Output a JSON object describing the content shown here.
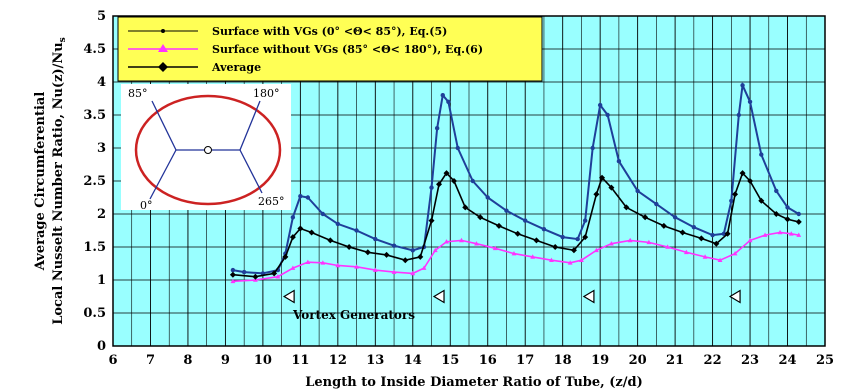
{
  "colors": {
    "plot_background": "#99ffff",
    "grid": "#000000",
    "legend_background": "#ffff55",
    "series_vg": "#1f3f99",
    "series_novg": "#ff33ff",
    "series_avg": "#000000",
    "inset_ellipse": "#cc2222",
    "inset_lines": "#223399"
  },
  "chart_data": {
    "type": "line",
    "title": "",
    "xlabel": "Length to Inside Diameter Ratio of Tube, (z/d)",
    "ylabel_line1": "Average Circumferential",
    "ylabel_line2": "Local Nusselt Number Ratio, Nu(z)/Nu",
    "ylabel_sub": "s",
    "xlim": [
      6,
      25
    ],
    "ylim": [
      0,
      5
    ],
    "x_ticks": [
      "6",
      "7",
      "8",
      "9",
      "10",
      "11",
      "12",
      "13",
      "14",
      "15",
      "16",
      "17",
      "18",
      "19",
      "20",
      "21",
      "22",
      "23",
      "24",
      "25"
    ],
    "y_ticks": [
      "0",
      "0.5",
      "1",
      "1.5",
      "2",
      "2.5",
      "3",
      "3.5",
      "4",
      "4.5",
      "5"
    ],
    "grid": true,
    "legend_position": "top-left",
    "series": [
      {
        "name": "Surface with VGs (0° <Θ< 85°), Eq.(5)",
        "marker": "small-dot",
        "points": [
          [
            9.2,
            1.15
          ],
          [
            9.5,
            1.12
          ],
          [
            10.0,
            1.1
          ],
          [
            10.4,
            1.15
          ],
          [
            10.6,
            1.4
          ],
          [
            10.8,
            1.95
          ],
          [
            11.0,
            2.27
          ],
          [
            11.2,
            2.25
          ],
          [
            11.6,
            2.0
          ],
          [
            12.0,
            1.85
          ],
          [
            12.5,
            1.75
          ],
          [
            13.0,
            1.62
          ],
          [
            13.5,
            1.52
          ],
          [
            14.0,
            1.45
          ],
          [
            14.3,
            1.5
          ],
          [
            14.5,
            2.4
          ],
          [
            14.65,
            3.3
          ],
          [
            14.8,
            3.8
          ],
          [
            14.95,
            3.7
          ],
          [
            15.2,
            3.0
          ],
          [
            15.6,
            2.5
          ],
          [
            16.0,
            2.25
          ],
          [
            16.5,
            2.05
          ],
          [
            17.0,
            1.9
          ],
          [
            17.5,
            1.77
          ],
          [
            18.0,
            1.65
          ],
          [
            18.4,
            1.62
          ],
          [
            18.6,
            1.9
          ],
          [
            18.8,
            3.0
          ],
          [
            19.0,
            3.65
          ],
          [
            19.2,
            3.5
          ],
          [
            19.5,
            2.8
          ],
          [
            20.0,
            2.35
          ],
          [
            20.5,
            2.15
          ],
          [
            21.0,
            1.95
          ],
          [
            21.5,
            1.8
          ],
          [
            22.0,
            1.68
          ],
          [
            22.3,
            1.7
          ],
          [
            22.5,
            2.2
          ],
          [
            22.7,
            3.5
          ],
          [
            22.8,
            3.95
          ],
          [
            23.0,
            3.7
          ],
          [
            23.3,
            2.9
          ],
          [
            23.7,
            2.35
          ],
          [
            24.0,
            2.1
          ],
          [
            24.3,
            2.0
          ]
        ]
      },
      {
        "name": "Surface without VGs (85° <Θ< 180°), Eq.(6)",
        "marker": "triangle",
        "points": [
          [
            9.2,
            0.98
          ],
          [
            9.8,
            1.0
          ],
          [
            10.4,
            1.05
          ],
          [
            10.8,
            1.18
          ],
          [
            11.2,
            1.27
          ],
          [
            11.6,
            1.26
          ],
          [
            12.0,
            1.22
          ],
          [
            12.5,
            1.2
          ],
          [
            13.0,
            1.15
          ],
          [
            13.5,
            1.12
          ],
          [
            14.0,
            1.1
          ],
          [
            14.3,
            1.18
          ],
          [
            14.6,
            1.45
          ],
          [
            14.9,
            1.58
          ],
          [
            15.3,
            1.6
          ],
          [
            15.7,
            1.55
          ],
          [
            16.2,
            1.48
          ],
          [
            16.7,
            1.4
          ],
          [
            17.2,
            1.35
          ],
          [
            17.7,
            1.3
          ],
          [
            18.2,
            1.26
          ],
          [
            18.5,
            1.3
          ],
          [
            18.9,
            1.45
          ],
          [
            19.3,
            1.55
          ],
          [
            19.8,
            1.6
          ],
          [
            20.3,
            1.57
          ],
          [
            20.8,
            1.5
          ],
          [
            21.3,
            1.42
          ],
          [
            21.8,
            1.35
          ],
          [
            22.2,
            1.3
          ],
          [
            22.6,
            1.4
          ],
          [
            23.0,
            1.6
          ],
          [
            23.4,
            1.68
          ],
          [
            23.8,
            1.72
          ],
          [
            24.1,
            1.7
          ],
          [
            24.3,
            1.68
          ]
        ]
      },
      {
        "name": "Average",
        "marker": "diamond",
        "points": [
          [
            9.2,
            1.08
          ],
          [
            9.8,
            1.05
          ],
          [
            10.3,
            1.1
          ],
          [
            10.6,
            1.35
          ],
          [
            10.8,
            1.65
          ],
          [
            11.0,
            1.78
          ],
          [
            11.3,
            1.72
          ],
          [
            11.8,
            1.6
          ],
          [
            12.3,
            1.5
          ],
          [
            12.8,
            1.42
          ],
          [
            13.3,
            1.38
          ],
          [
            13.8,
            1.3
          ],
          [
            14.2,
            1.35
          ],
          [
            14.5,
            1.9
          ],
          [
            14.7,
            2.45
          ],
          [
            14.9,
            2.62
          ],
          [
            15.1,
            2.5
          ],
          [
            15.4,
            2.1
          ],
          [
            15.8,
            1.95
          ],
          [
            16.3,
            1.82
          ],
          [
            16.8,
            1.7
          ],
          [
            17.3,
            1.6
          ],
          [
            17.8,
            1.5
          ],
          [
            18.3,
            1.45
          ],
          [
            18.6,
            1.65
          ],
          [
            18.9,
            2.3
          ],
          [
            19.05,
            2.55
          ],
          [
            19.3,
            2.4
          ],
          [
            19.7,
            2.1
          ],
          [
            20.2,
            1.95
          ],
          [
            20.7,
            1.82
          ],
          [
            21.2,
            1.72
          ],
          [
            21.7,
            1.63
          ],
          [
            22.1,
            1.55
          ],
          [
            22.4,
            1.7
          ],
          [
            22.6,
            2.3
          ],
          [
            22.8,
            2.62
          ],
          [
            23.0,
            2.5
          ],
          [
            23.3,
            2.2
          ],
          [
            23.7,
            2.0
          ],
          [
            24.0,
            1.92
          ],
          [
            24.3,
            1.88
          ]
        ]
      }
    ],
    "annotations": {
      "vortex_label": "Vortex Generators",
      "vortex_markers": [
        {
          "x": 10.7,
          "y": 0.75
        },
        {
          "x": 14.7,
          "y": 0.75
        },
        {
          "x": 18.7,
          "y": 0.75
        },
        {
          "x": 22.6,
          "y": 0.75
        }
      ]
    },
    "inset": {
      "labels": [
        "85°",
        "180°",
        "0°",
        "265°"
      ]
    }
  }
}
